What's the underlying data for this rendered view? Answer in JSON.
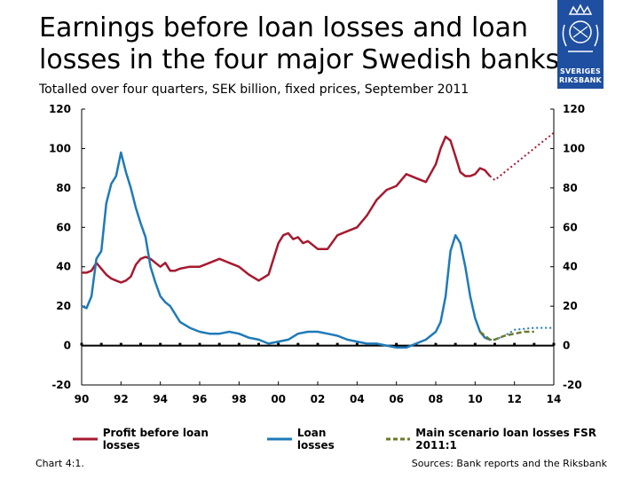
{
  "title_line1": "Earnings before loan losses and loan",
  "title_line2": "losses in the four major Swedish banks",
  "subtitle": "Totalled over four quarters, SEK billion, fixed prices, September 2011",
  "logo": {
    "line1": "SVERIGES",
    "line2": "RIKSBANK"
  },
  "footer_left": "Chart 4:1.",
  "footer_right": "Sources: Bank reports and the Riksbank",
  "colors": {
    "profit": "#a6192e",
    "loan": "#1f7ab8",
    "scenario": "#6b7a2c",
    "logo": "#1f4fa0"
  },
  "chart_data": {
    "type": "line",
    "xlim": [
      1990,
      2014
    ],
    "ylim": [
      -20,
      120
    ],
    "x_ticks": [
      "90",
      "92",
      "94",
      "96",
      "98",
      "00",
      "02",
      "04",
      "06",
      "08",
      "10",
      "12",
      "14"
    ],
    "y_ticks": [
      "-20",
      "0",
      "20",
      "40",
      "60",
      "80",
      "100",
      "120"
    ],
    "grid": false,
    "legend_position": "bottom",
    "series": [
      {
        "name": "Profit before loan losses",
        "style": "solid",
        "x": [
          1990,
          1990.25,
          1990.5,
          1990.75,
          1991,
          1991.25,
          1991.5,
          1991.75,
          1992,
          1992.25,
          1992.5,
          1992.75,
          1993,
          1993.25,
          1993.5,
          1993.75,
          1994,
          1994.25,
          1994.5,
          1994.75,
          1995,
          1995.5,
          1996,
          1996.5,
          1997,
          1997.5,
          1998,
          1998.5,
          1999,
          1999.5,
          2000,
          2000.25,
          2000.5,
          2000.75,
          2001,
          2001.25,
          2001.5,
          2002,
          2002.5,
          2003,
          2003.5,
          2004,
          2004.5,
          2005,
          2005.5,
          2006,
          2006.5,
          2007,
          2007.5,
          2008,
          2008.25,
          2008.5,
          2008.75,
          2009,
          2009.25,
          2009.5,
          2009.75,
          2010,
          2010.25,
          2010.5,
          2010.75
        ],
        "values": [
          37,
          37,
          38,
          42,
          39,
          36,
          34,
          33,
          32,
          33,
          35,
          41,
          44,
          45,
          44,
          42,
          40,
          42,
          38,
          38,
          39,
          40,
          40,
          42,
          44,
          42,
          40,
          36,
          33,
          36,
          52,
          56,
          57,
          54,
          55,
          52,
          53,
          49,
          49,
          56,
          58,
          60,
          66,
          74,
          79,
          81,
          87,
          85,
          83,
          92,
          100,
          106,
          104,
          96,
          88,
          86,
          86,
          87,
          90,
          89,
          86
        ]
      },
      {
        "name": "Loan losses",
        "style": "solid",
        "x": [
          1990,
          1990.25,
          1990.5,
          1990.75,
          1991,
          1991.25,
          1991.5,
          1991.75,
          1992,
          1992.25,
          1992.5,
          1992.75,
          1993,
          1993.25,
          1993.5,
          1993.75,
          1994,
          1994.25,
          1994.5,
          1994.75,
          1995,
          1995.5,
          1996,
          1996.5,
          1997,
          1997.5,
          1998,
          1998.5,
          1999,
          1999.5,
          2000,
          2000.5,
          2001,
          2001.5,
          2002,
          2002.5,
          2003,
          2003.5,
          2004,
          2004.5,
          2005,
          2005.5,
          2006,
          2006.5,
          2007,
          2007.5,
          2008,
          2008.25,
          2008.5,
          2008.75,
          2009,
          2009.25,
          2009.5,
          2009.75,
          2010,
          2010.25,
          2010.5,
          2010.75
        ],
        "values": [
          20,
          19,
          25,
          44,
          48,
          72,
          82,
          86,
          98,
          88,
          80,
          70,
          62,
          55,
          40,
          32,
          25,
          22,
          20,
          16,
          12,
          9,
          7,
          6,
          6,
          7,
          6,
          4,
          3,
          1,
          2,
          3,
          6,
          7,
          7,
          6,
          5,
          3,
          2,
          1,
          1,
          0,
          -1,
          -1,
          1,
          3,
          7,
          12,
          25,
          48,
          56,
          52,
          40,
          25,
          14,
          7,
          4,
          3
        ]
      },
      {
        "name": "Profit before loan losses (forecast)",
        "style": "dotted",
        "legend": false,
        "x": [
          2010.75,
          2011,
          2012,
          2013,
          2014
        ],
        "values": [
          86,
          84,
          92,
          100,
          108
        ]
      },
      {
        "name": "Loan losses (forecast)",
        "style": "dotted",
        "legend": false,
        "x": [
          2010.75,
          2011,
          2011.5,
          2012,
          2013,
          2014
        ],
        "values": [
          3,
          3,
          5,
          8,
          9,
          9
        ]
      },
      {
        "name": "Main scenario loan losses FSR 2011:1",
        "style": "dashed",
        "x": [
          2010.25,
          2010.5,
          2010.75,
          2011,
          2011.5,
          2012,
          2012.5,
          2013
        ],
        "values": [
          7,
          5,
          3,
          3,
          5,
          6,
          7,
          7
        ]
      }
    ]
  }
}
